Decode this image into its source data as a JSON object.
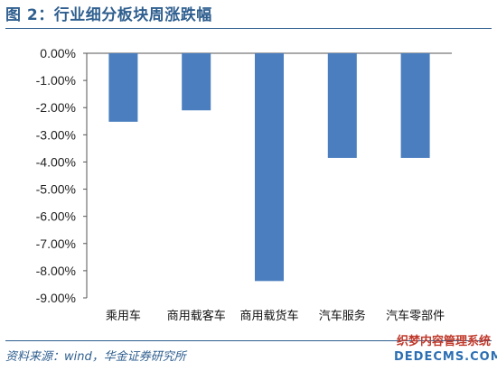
{
  "title": "图 2：行业细分板块周涨跌幅",
  "source": "资料来源：wind，华金证券研究所",
  "watermark": {
    "line1": "织梦内容管理系统",
    "line2": "DEDECMS.COM"
  },
  "chart_data": {
    "type": "bar",
    "categories": [
      "乘用车",
      "商用载客车",
      "商用载货车",
      "汽车服务",
      "汽车零部件"
    ],
    "values": [
      -2.52,
      -2.1,
      -8.38,
      -3.85,
      -3.85
    ],
    "ylim": [
      -9,
      0
    ],
    "yticks": [
      0,
      -1,
      -2,
      -3,
      -4,
      -5,
      -6,
      -7,
      -8,
      -9
    ],
    "ytick_labels": [
      "0.00%",
      "-1.00%",
      "-2.00%",
      "-3.00%",
      "-4.00%",
      "-5.00%",
      "-6.00%",
      "-7.00%",
      "-8.00%",
      "-9.00%"
    ],
    "bar_color": "#4a7ebf",
    "grid": false,
    "xlabel": "",
    "ylabel": ""
  }
}
